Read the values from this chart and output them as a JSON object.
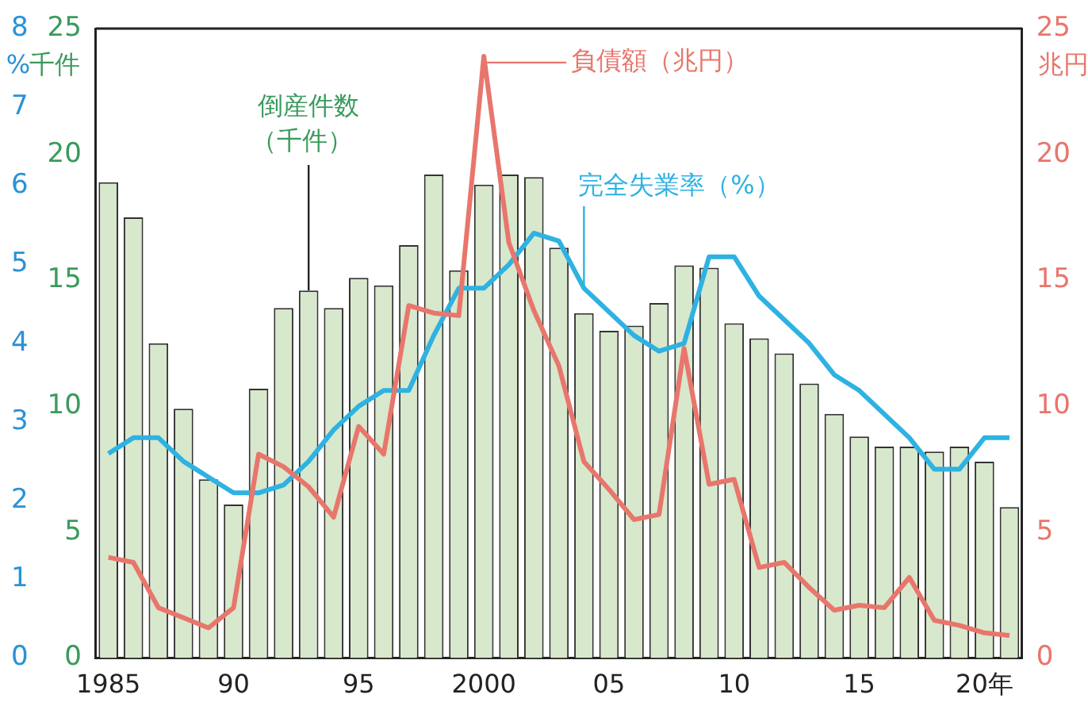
{
  "chart_data": {
    "type": "bar",
    "categories": [
      "1985",
      null,
      null,
      null,
      null,
      "90",
      null,
      null,
      null,
      null,
      "95",
      null,
      null,
      null,
      null,
      "2000",
      null,
      null,
      null,
      null,
      "05",
      null,
      null,
      null,
      null,
      "10",
      null,
      null,
      null,
      null,
      "15",
      null,
      null,
      null,
      null,
      "20年",
      null
    ],
    "series": [
      {
        "name": "倒産件数（千件）",
        "color": "#d8e8cc",
        "values": [
          18.9,
          17.5,
          12.5,
          9.9,
          7.1,
          6.1,
          10.7,
          13.9,
          14.6,
          13.9,
          15.1,
          14.8,
          16.4,
          19.2,
          15.4,
          18.8,
          19.2,
          19.1,
          16.3,
          13.7,
          13.0,
          13.2,
          14.1,
          15.6,
          15.5,
          13.3,
          12.7,
          12.1,
          10.9,
          9.7,
          8.8,
          8.4,
          8.4,
          8.2,
          8.4,
          7.8,
          6.0
        ]
      },
      {
        "name": "負債額（兆円）",
        "type": "line",
        "axis": "y2",
        "color": "#e8766c",
        "values": [
          4.0,
          3.8,
          2.0,
          1.6,
          1.2,
          2.0,
          8.1,
          7.6,
          6.8,
          5.6,
          9.2,
          8.1,
          14.0,
          13.7,
          13.6,
          23.9,
          16.5,
          13.8,
          11.6,
          7.8,
          6.7,
          5.5,
          5.7,
          12.3,
          6.9,
          7.1,
          3.6,
          3.8,
          2.8,
          1.9,
          2.1,
          2.0,
          3.2,
          1.5,
          1.3,
          1.0,
          0.9
        ]
      },
      {
        "name": "完全失業率（%）",
        "type": "line",
        "axis": "y3",
        "color": "#2eb2e2",
        "values": [
          2.6,
          2.8,
          2.8,
          2.5,
          2.3,
          2.1,
          2.1,
          2.2,
          2.5,
          2.9,
          3.2,
          3.4,
          3.4,
          4.1,
          4.7,
          4.7,
          5.0,
          5.4,
          5.3,
          4.7,
          4.4,
          4.1,
          3.9,
          4.0,
          5.1,
          5.1,
          4.6,
          4.3,
          4.0,
          3.6,
          3.4,
          3.1,
          2.8,
          2.4,
          2.4,
          2.8,
          2.8
        ]
      }
    ],
    "ylabel": "千件",
    "ylim": [
      0,
      25
    ],
    "yticks": [
      0,
      5,
      10,
      15,
      20,
      25
    ],
    "y2label": "兆円",
    "y2lim": [
      0,
      25
    ],
    "y2ticks": [
      0,
      5,
      10,
      15,
      20,
      25
    ],
    "y3label": "%",
    "y3lim": [
      0,
      8
    ],
    "y3ticks": [
      0,
      1,
      2,
      3,
      4,
      5,
      6,
      7,
      8
    ]
  }
}
